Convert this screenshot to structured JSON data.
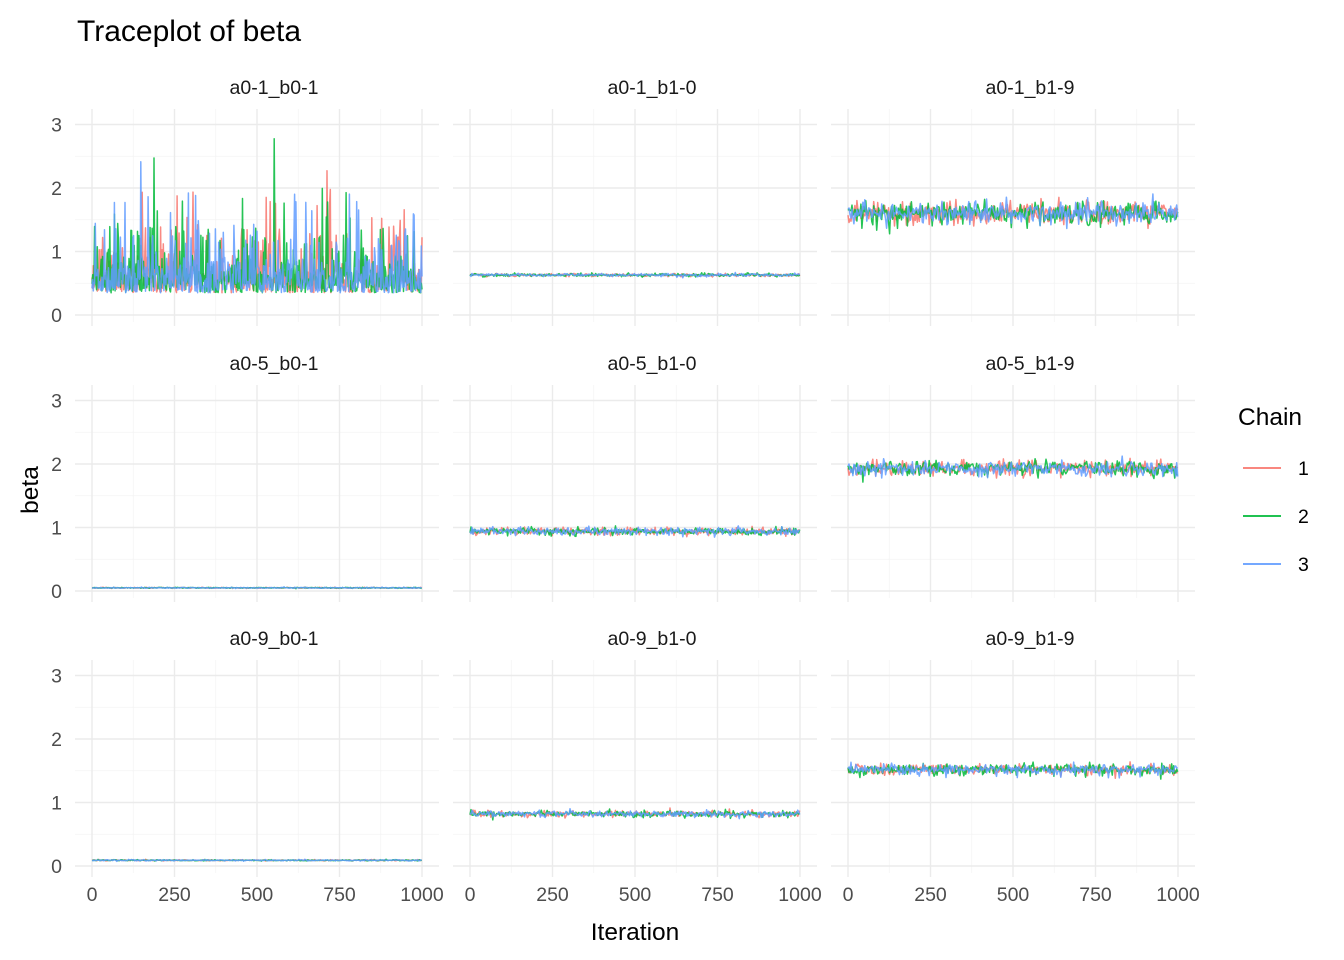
{
  "chart_data": {
    "type": "line",
    "title": "Traceplot of beta",
    "xlabel": "Iteration",
    "ylabel": "beta",
    "xlim": [
      0,
      1000
    ],
    "ylim": [
      0,
      3.2
    ],
    "x_ticks": [
      "0",
      "250",
      "500",
      "750",
      "1000"
    ],
    "y_ticks": [
      "0",
      "1",
      "2",
      "3"
    ],
    "grid": true,
    "legend": {
      "title": "Chain",
      "position": "right",
      "entries": [
        {
          "label": "1",
          "color": "#f8766d"
        },
        {
          "label": "2",
          "color": "#00ba38"
        },
        {
          "label": "3",
          "color": "#619cff"
        }
      ]
    },
    "iterations": 1000,
    "panels": [
      {
        "label": "a0-1_b0-1",
        "mean": 0.62,
        "spread": 0.35,
        "spikes": true
      },
      {
        "label": "a0-1_b1-0",
        "mean": 0.63,
        "spread": 0.012,
        "spikes": false
      },
      {
        "label": "a0-1_b1-9",
        "mean": 1.6,
        "spread": 0.09,
        "spikes": false
      },
      {
        "label": "a0-5_b0-1",
        "mean": 0.05,
        "spread": 0.004,
        "spikes": false
      },
      {
        "label": "a0-5_b1-0",
        "mean": 0.94,
        "spread": 0.03,
        "spikes": false
      },
      {
        "label": "a0-5_b1-9",
        "mean": 1.93,
        "spread": 0.06,
        "spikes": false
      },
      {
        "label": "a0-9_b0-1",
        "mean": 0.09,
        "spread": 0.005,
        "spikes": false
      },
      {
        "label": "a0-9_b1-0",
        "mean": 0.82,
        "spread": 0.025,
        "spikes": false
      },
      {
        "label": "a0-9_b1-9",
        "mean": 1.52,
        "spread": 0.045,
        "spikes": false
      }
    ]
  }
}
